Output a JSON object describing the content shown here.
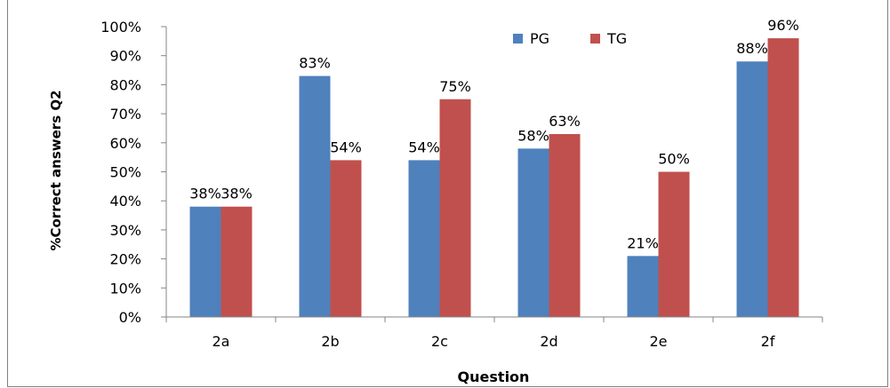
{
  "chart_data": {
    "type": "bar",
    "categories": [
      "2a",
      "2b",
      "2c",
      "2d",
      "2e",
      "2f"
    ],
    "series": [
      {
        "name": "PG",
        "values": [
          38,
          83,
          54,
          58,
          21,
          88
        ],
        "labels": [
          "38%",
          "83%",
          "54%",
          "58%",
          "21%",
          "88%"
        ],
        "color": "#4F81BD"
      },
      {
        "name": "TG",
        "values": [
          38,
          54,
          75,
          63,
          50,
          96
        ],
        "labels": [
          "38%",
          "54%",
          "75%",
          "63%",
          "50%",
          "96%"
        ],
        "color": "#C0504D"
      }
    ],
    "xlabel": "Question",
    "ylabel": "%Correct answers Q2",
    "ylim": [
      0,
      100
    ],
    "yticks": [
      0,
      10,
      20,
      30,
      40,
      50,
      60,
      70,
      80,
      90,
      100
    ],
    "ytick_labels": [
      "0%",
      "10%",
      "20%",
      "30%",
      "40%",
      "50%",
      "60%",
      "70%",
      "80%",
      "90%",
      "100%"
    ],
    "grid": false,
    "legend_position": "top-right"
  }
}
